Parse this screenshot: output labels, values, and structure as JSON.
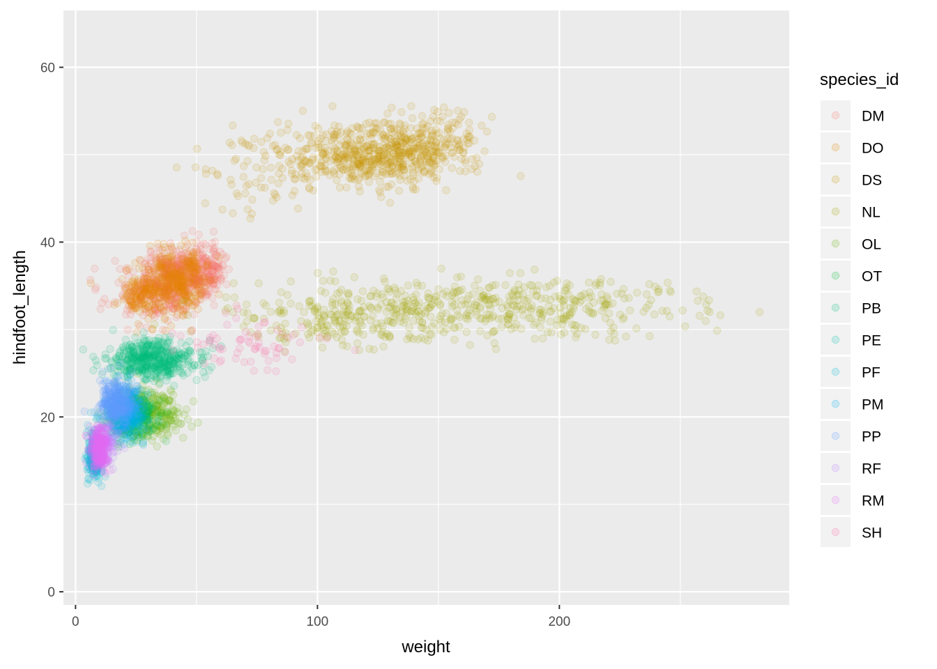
{
  "chart_data": {
    "type": "scatter",
    "xlabel": "weight",
    "ylabel": "hindfoot_length",
    "xlim": [
      -5,
      295
    ],
    "ylim": [
      -1.5,
      66.5
    ],
    "x_ticks": [
      0,
      100,
      200
    ],
    "y_ticks": [
      0,
      20,
      40,
      60
    ],
    "grid": true,
    "point_alpha": 0.12,
    "legend": {
      "title": "species_id",
      "position": "right"
    },
    "series": [
      {
        "name": "DM",
        "color": "#F8766D",
        "clusters": [
          {
            "cx": 42,
            "cy": 36,
            "sx": 7,
            "sy": 1.6,
            "n": 420
          },
          {
            "cx": 30,
            "cy": 34,
            "sx": 9,
            "sy": 1.5,
            "n": 160
          },
          {
            "cx": 55,
            "cy": 37,
            "sx": 4,
            "sy": 1.5,
            "n": 120
          }
        ]
      },
      {
        "name": "DO",
        "color": "#E58700",
        "clusters": [
          {
            "cx": 42,
            "cy": 35.5,
            "sx": 6,
            "sy": 1.8,
            "n": 320
          },
          {
            "cx": 28,
            "cy": 34,
            "sx": 6,
            "sy": 1.3,
            "n": 140
          }
        ]
      },
      {
        "name": "DS",
        "color": "#C99800",
        "clusters": [
          {
            "cx": 125,
            "cy": 50,
            "sx": 17,
            "sy": 1.9,
            "n": 560
          },
          {
            "cx": 80,
            "cy": 48,
            "sx": 14,
            "sy": 2.2,
            "n": 90
          },
          {
            "cx": 150,
            "cy": 52,
            "sx": 10,
            "sy": 1.6,
            "n": 100
          }
        ]
      },
      {
        "name": "NL",
        "color": "#A3A500",
        "clusters": [
          {
            "cx": 170,
            "cy": 32.5,
            "sx": 45,
            "sy": 1.7,
            "n": 480
          },
          {
            "cx": 110,
            "cy": 31,
            "sx": 20,
            "sy": 1.7,
            "n": 160
          }
        ]
      },
      {
        "name": "OL",
        "color": "#6BB100",
        "clusters": [
          {
            "cx": 32,
            "cy": 20.5,
            "sx": 6,
            "sy": 1.4,
            "n": 260
          }
        ]
      },
      {
        "name": "OT",
        "color": "#00BA38",
        "clusters": [
          {
            "cx": 24,
            "cy": 20,
            "sx": 5,
            "sy": 1.4,
            "n": 220
          }
        ]
      },
      {
        "name": "PB",
        "color": "#00BF7D",
        "clusters": [
          {
            "cx": 32,
            "cy": 26.5,
            "sx": 9,
            "sy": 1.1,
            "n": 480
          }
        ]
      },
      {
        "name": "PE",
        "color": "#00C0AF",
        "clusters": [
          {
            "cx": 21,
            "cy": 20,
            "sx": 4,
            "sy": 1.3,
            "n": 180
          }
        ]
      },
      {
        "name": "PF",
        "color": "#00BCD8",
        "clusters": [
          {
            "cx": 8,
            "cy": 15.5,
            "sx": 1.6,
            "sy": 1.4,
            "n": 240
          }
        ]
      },
      {
        "name": "PM",
        "color": "#00B0F6",
        "clusters": [
          {
            "cx": 21,
            "cy": 20.5,
            "sx": 4,
            "sy": 1.5,
            "n": 220
          }
        ]
      },
      {
        "name": "PP",
        "color": "#619CFF",
        "clusters": [
          {
            "cx": 17,
            "cy": 21.5,
            "sx": 3.5,
            "sy": 1.3,
            "n": 320
          }
        ]
      },
      {
        "name": "RF",
        "color": "#B983FF",
        "clusters": [
          {
            "cx": 14,
            "cy": 17,
            "sx": 3,
            "sy": 1.3,
            "n": 70
          }
        ]
      },
      {
        "name": "RM",
        "color": "#E76BF3",
        "clusters": [
          {
            "cx": 10,
            "cy": 16.5,
            "sx": 2,
            "sy": 1.2,
            "n": 260
          }
        ]
      },
      {
        "name": "SH",
        "color": "#FF67A4",
        "clusters": [
          {
            "cx": 70,
            "cy": 28.5,
            "sx": 14,
            "sy": 1.5,
            "n": 70
          }
        ]
      }
    ]
  }
}
